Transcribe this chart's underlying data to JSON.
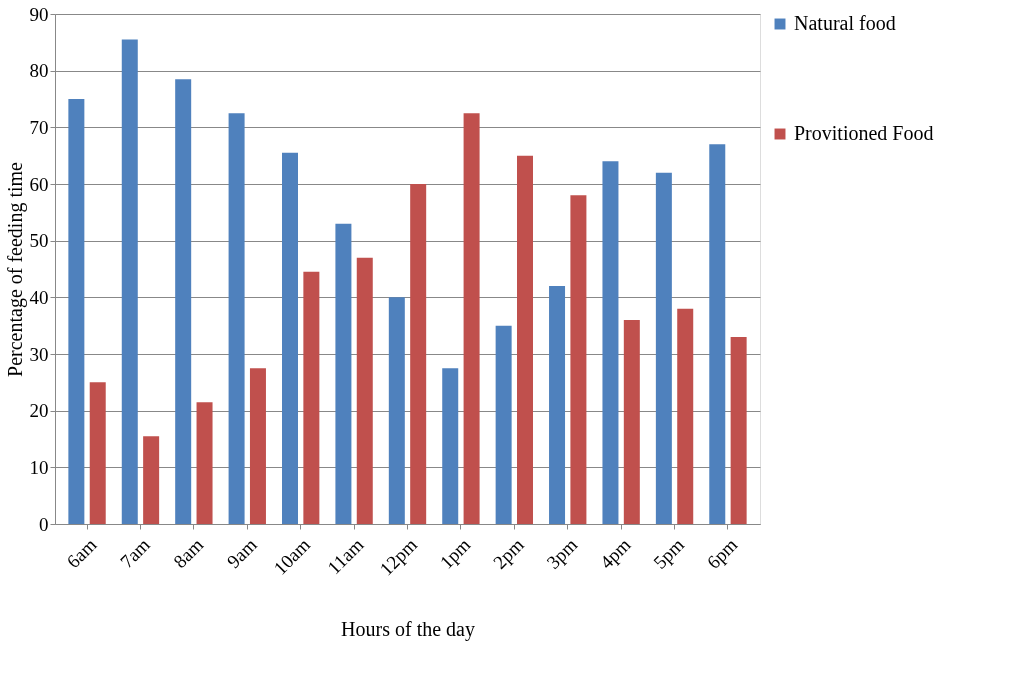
{
  "chart_data": {
    "type": "bar",
    "xlabel": "Hours of the day",
    "ylabel": "Percentage of feeding time",
    "categories": [
      "6am",
      "7am",
      "8am",
      "9am",
      "10am",
      "11am",
      "12pm",
      "1pm",
      "2pm",
      "3pm",
      "4pm",
      "5pm",
      "6pm"
    ],
    "series": [
      {
        "name": "Natural food",
        "color": "#4f81bd",
        "values": [
          75,
          85.5,
          78.5,
          72.5,
          65.5,
          53,
          40,
          27.5,
          35,
          42,
          64,
          62,
          67
        ]
      },
      {
        "name": "Provitioned Food",
        "color": "#c0504d",
        "values": [
          25,
          15.5,
          21.5,
          27.5,
          44.5,
          47,
          60,
          72.5,
          65,
          58,
          36,
          38,
          33
        ]
      }
    ],
    "ylim": [
      0,
      90
    ],
    "yticks": [
      0,
      10,
      20,
      30,
      40,
      50,
      60,
      70,
      80,
      90
    ],
    "grid": "y",
    "legend": "right"
  }
}
